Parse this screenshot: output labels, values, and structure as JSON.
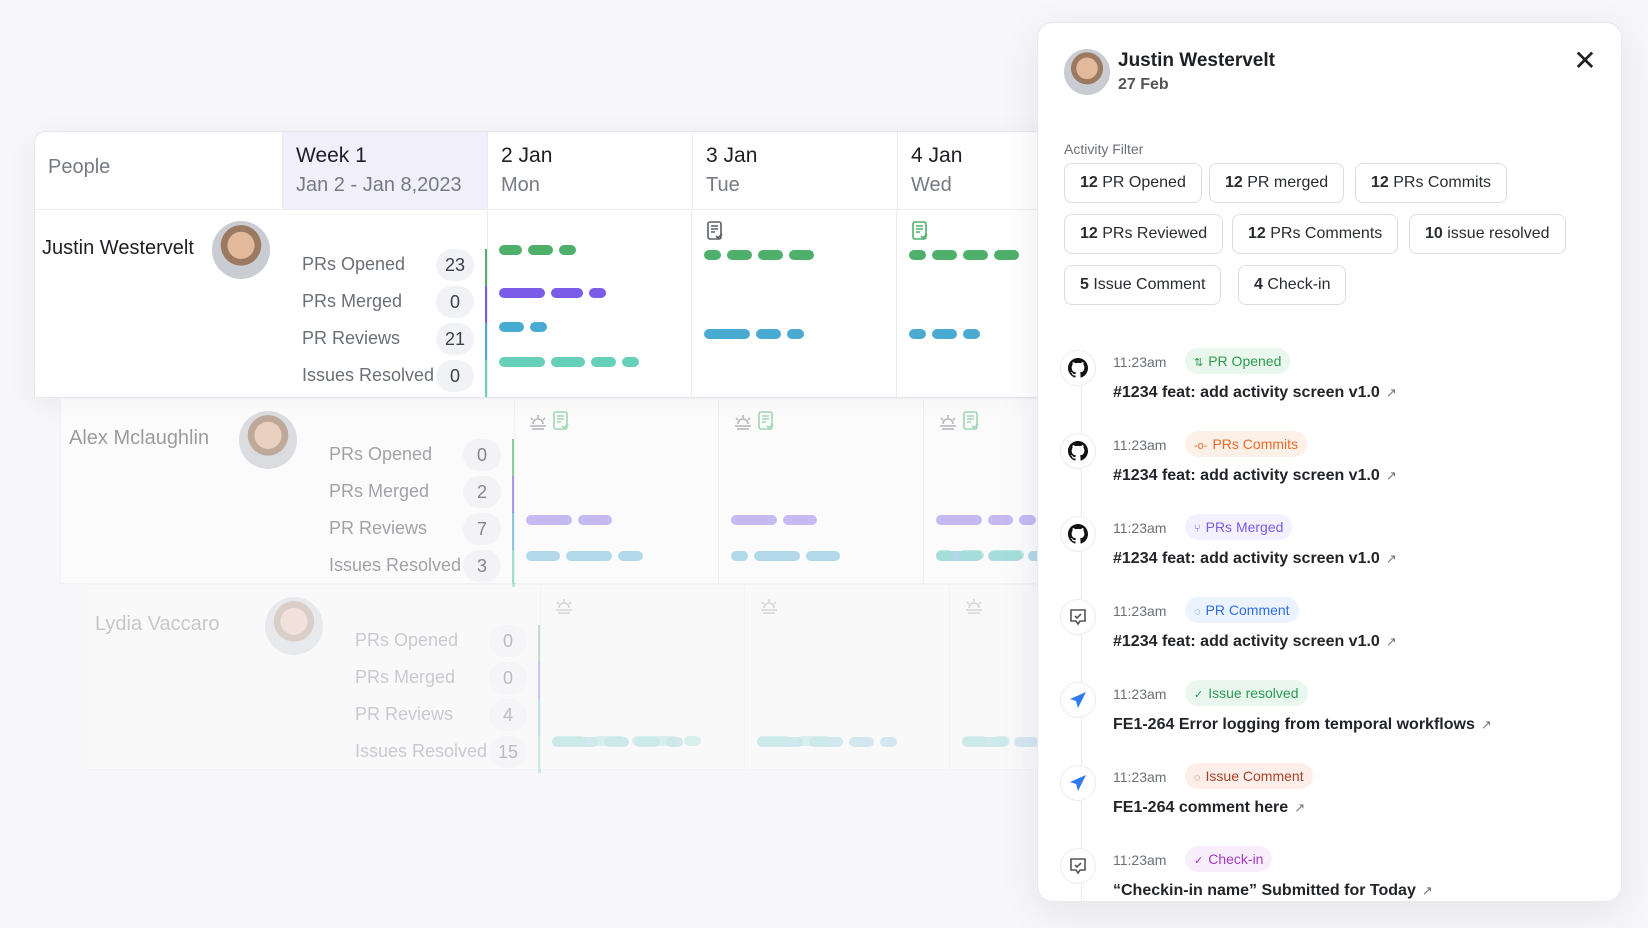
{
  "table": {
    "header": {
      "people": "People",
      "week_title": "Week 1",
      "week_range": "Jan 2 - Jan 8,2023",
      "days": [
        {
          "date": "2 Jan",
          "weekday": "Mon"
        },
        {
          "date": "3 Jan",
          "weekday": "Tue"
        },
        {
          "date": "4 Jan",
          "weekday": "Wed"
        }
      ]
    },
    "stat_labels": [
      "PRs Opened",
      "PRs Merged",
      "PR Reviews",
      "Issues Resolved"
    ],
    "people": [
      {
        "name": "Justin Westervelt",
        "stats": [
          23,
          0,
          21,
          0
        ]
      },
      {
        "name": "Alex Mclaughlin",
        "stats": [
          0,
          2,
          7,
          3
        ]
      },
      {
        "name": "Lydia Vaccaro",
        "stats": [
          0,
          0,
          4,
          15
        ]
      }
    ]
  },
  "colors": {
    "opened": "#4fb06c",
    "merged": "#7b5ce8",
    "reviews": "#4aabd2",
    "issues": "#66d1b8"
  },
  "panel": {
    "name": "Justin Westervelt",
    "date": "27 Feb",
    "close": "close-icon",
    "filter_label": "Activity Filter",
    "filters": [
      {
        "count": "12",
        "label": "PR Opened"
      },
      {
        "count": "12",
        "label": "PR merged"
      },
      {
        "count": "12",
        "label": "PRs Commits"
      },
      {
        "count": "12",
        "label": "PRs Reviewed"
      },
      {
        "count": "12",
        "label": "PRs Comments"
      },
      {
        "count": "10",
        "label": "issue resolved"
      },
      {
        "count": "5",
        "label": "Issue Comment"
      },
      {
        "count": "4",
        "label": "Check-in"
      }
    ],
    "activities": [
      {
        "icon": "github",
        "time": "11:23am",
        "badge": "PR Opened",
        "badge_icon": "⇅",
        "bg": "#e9f7ed",
        "fg": "#2f9a4f",
        "title": "#1234 feat: add activity screen v1.0"
      },
      {
        "icon": "github",
        "time": "11:23am",
        "badge": "PRs Commits",
        "badge_icon": "-o-",
        "bg": "#fdf1e7",
        "fg": "#e8692d",
        "title": "#1234 feat: add activity screen v1.0"
      },
      {
        "icon": "github",
        "time": "11:23am",
        "badge": "PRs Merged",
        "badge_icon": "⑂",
        "bg": "#f3f0ff",
        "fg": "#7c5ce6",
        "title": "#1234 feat: add activity screen v1.0"
      },
      {
        "icon": "checkin",
        "time": "11:23am",
        "badge": "PR Comment",
        "badge_icon": "◌",
        "bg": "#ebf3ff",
        "fg": "#2f6fe0",
        "title": "#1234 feat: add activity screen v1.0"
      },
      {
        "icon": "linear",
        "time": "11:23am",
        "badge": "Issue resolved",
        "badge_icon": "✓",
        "bg": "#eaf7ee",
        "fg": "#2a9a55",
        "title": "FE1-264 Error logging from temporal workflows"
      },
      {
        "icon": "linear",
        "time": "11:23am",
        "badge": "Issue Comment",
        "badge_icon": "◌",
        "bg": "#fdeee9",
        "fg": "#a8432b",
        "title": "FE1-264 comment here"
      },
      {
        "icon": "checkin",
        "time": "11:23am",
        "badge": "Check-in",
        "badge_icon": "✓",
        "bg": "#f8edfb",
        "fg": "#a33cc0",
        "title": "“Checkin-in name” Submitted for Today"
      }
    ]
  }
}
